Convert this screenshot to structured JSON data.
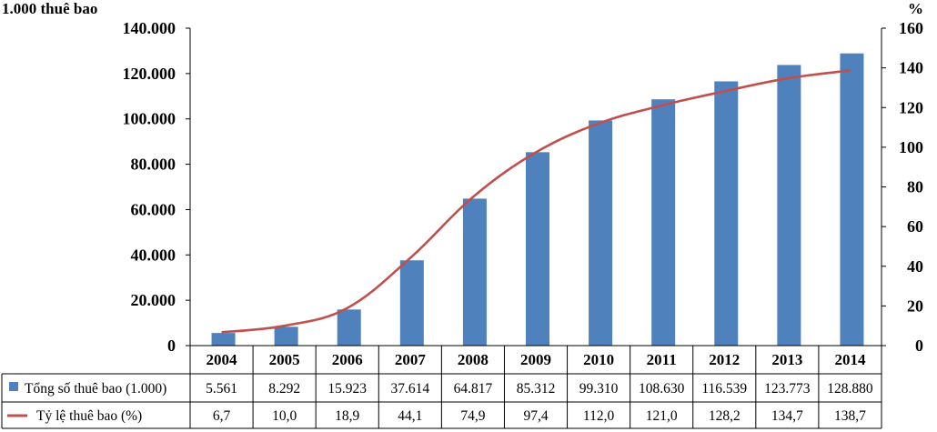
{
  "chart_data": {
    "type": "bar",
    "categories": [
      "2004",
      "2005",
      "2006",
      "2007",
      "2008",
      "2009",
      "2010",
      "2011",
      "2012",
      "2013",
      "2014"
    ],
    "series": [
      {
        "name": "Tổng số thuê bao (1.000)",
        "type": "bar",
        "axis": "left",
        "color": "#4f81bd",
        "values": [
          5561,
          8292,
          15923,
          37614,
          64817,
          85312,
          99310,
          108630,
          116539,
          123773,
          128880
        ],
        "labels": [
          "5.561",
          "8.292",
          "15.923",
          "37.614",
          "64.817",
          "85.312",
          "99.310",
          "108.630",
          "116.539",
          "123.773",
          "128.880"
        ]
      },
      {
        "name": "Tỷ lệ thuê bao (%)",
        "type": "line",
        "axis": "right",
        "color": "#c0504d",
        "values": [
          6.7,
          10.0,
          18.9,
          44.1,
          74.9,
          97.4,
          112.0,
          121.0,
          128.2,
          134.7,
          138.7
        ],
        "labels": [
          "6,7",
          "10,0",
          "18,9",
          "44,1",
          "74,9",
          "97,4",
          "112,0",
          "121,0",
          "128,2",
          "134,7",
          "138,7"
        ]
      }
    ],
    "ylabel_left": "1.000 thuê bao",
    "ylabel_right": "%",
    "ylim_left": [
      0,
      140000
    ],
    "ylim_right": [
      0,
      160
    ],
    "yticks_left": [
      "0",
      "20.000",
      "40.000",
      "60.000",
      "80.000",
      "100.000",
      "120.000",
      "140.000"
    ],
    "yticks_right": [
      "0",
      "20",
      "40",
      "60",
      "80",
      "100",
      "120",
      "140",
      "160"
    ],
    "grid": false,
    "legend": "data-table"
  }
}
